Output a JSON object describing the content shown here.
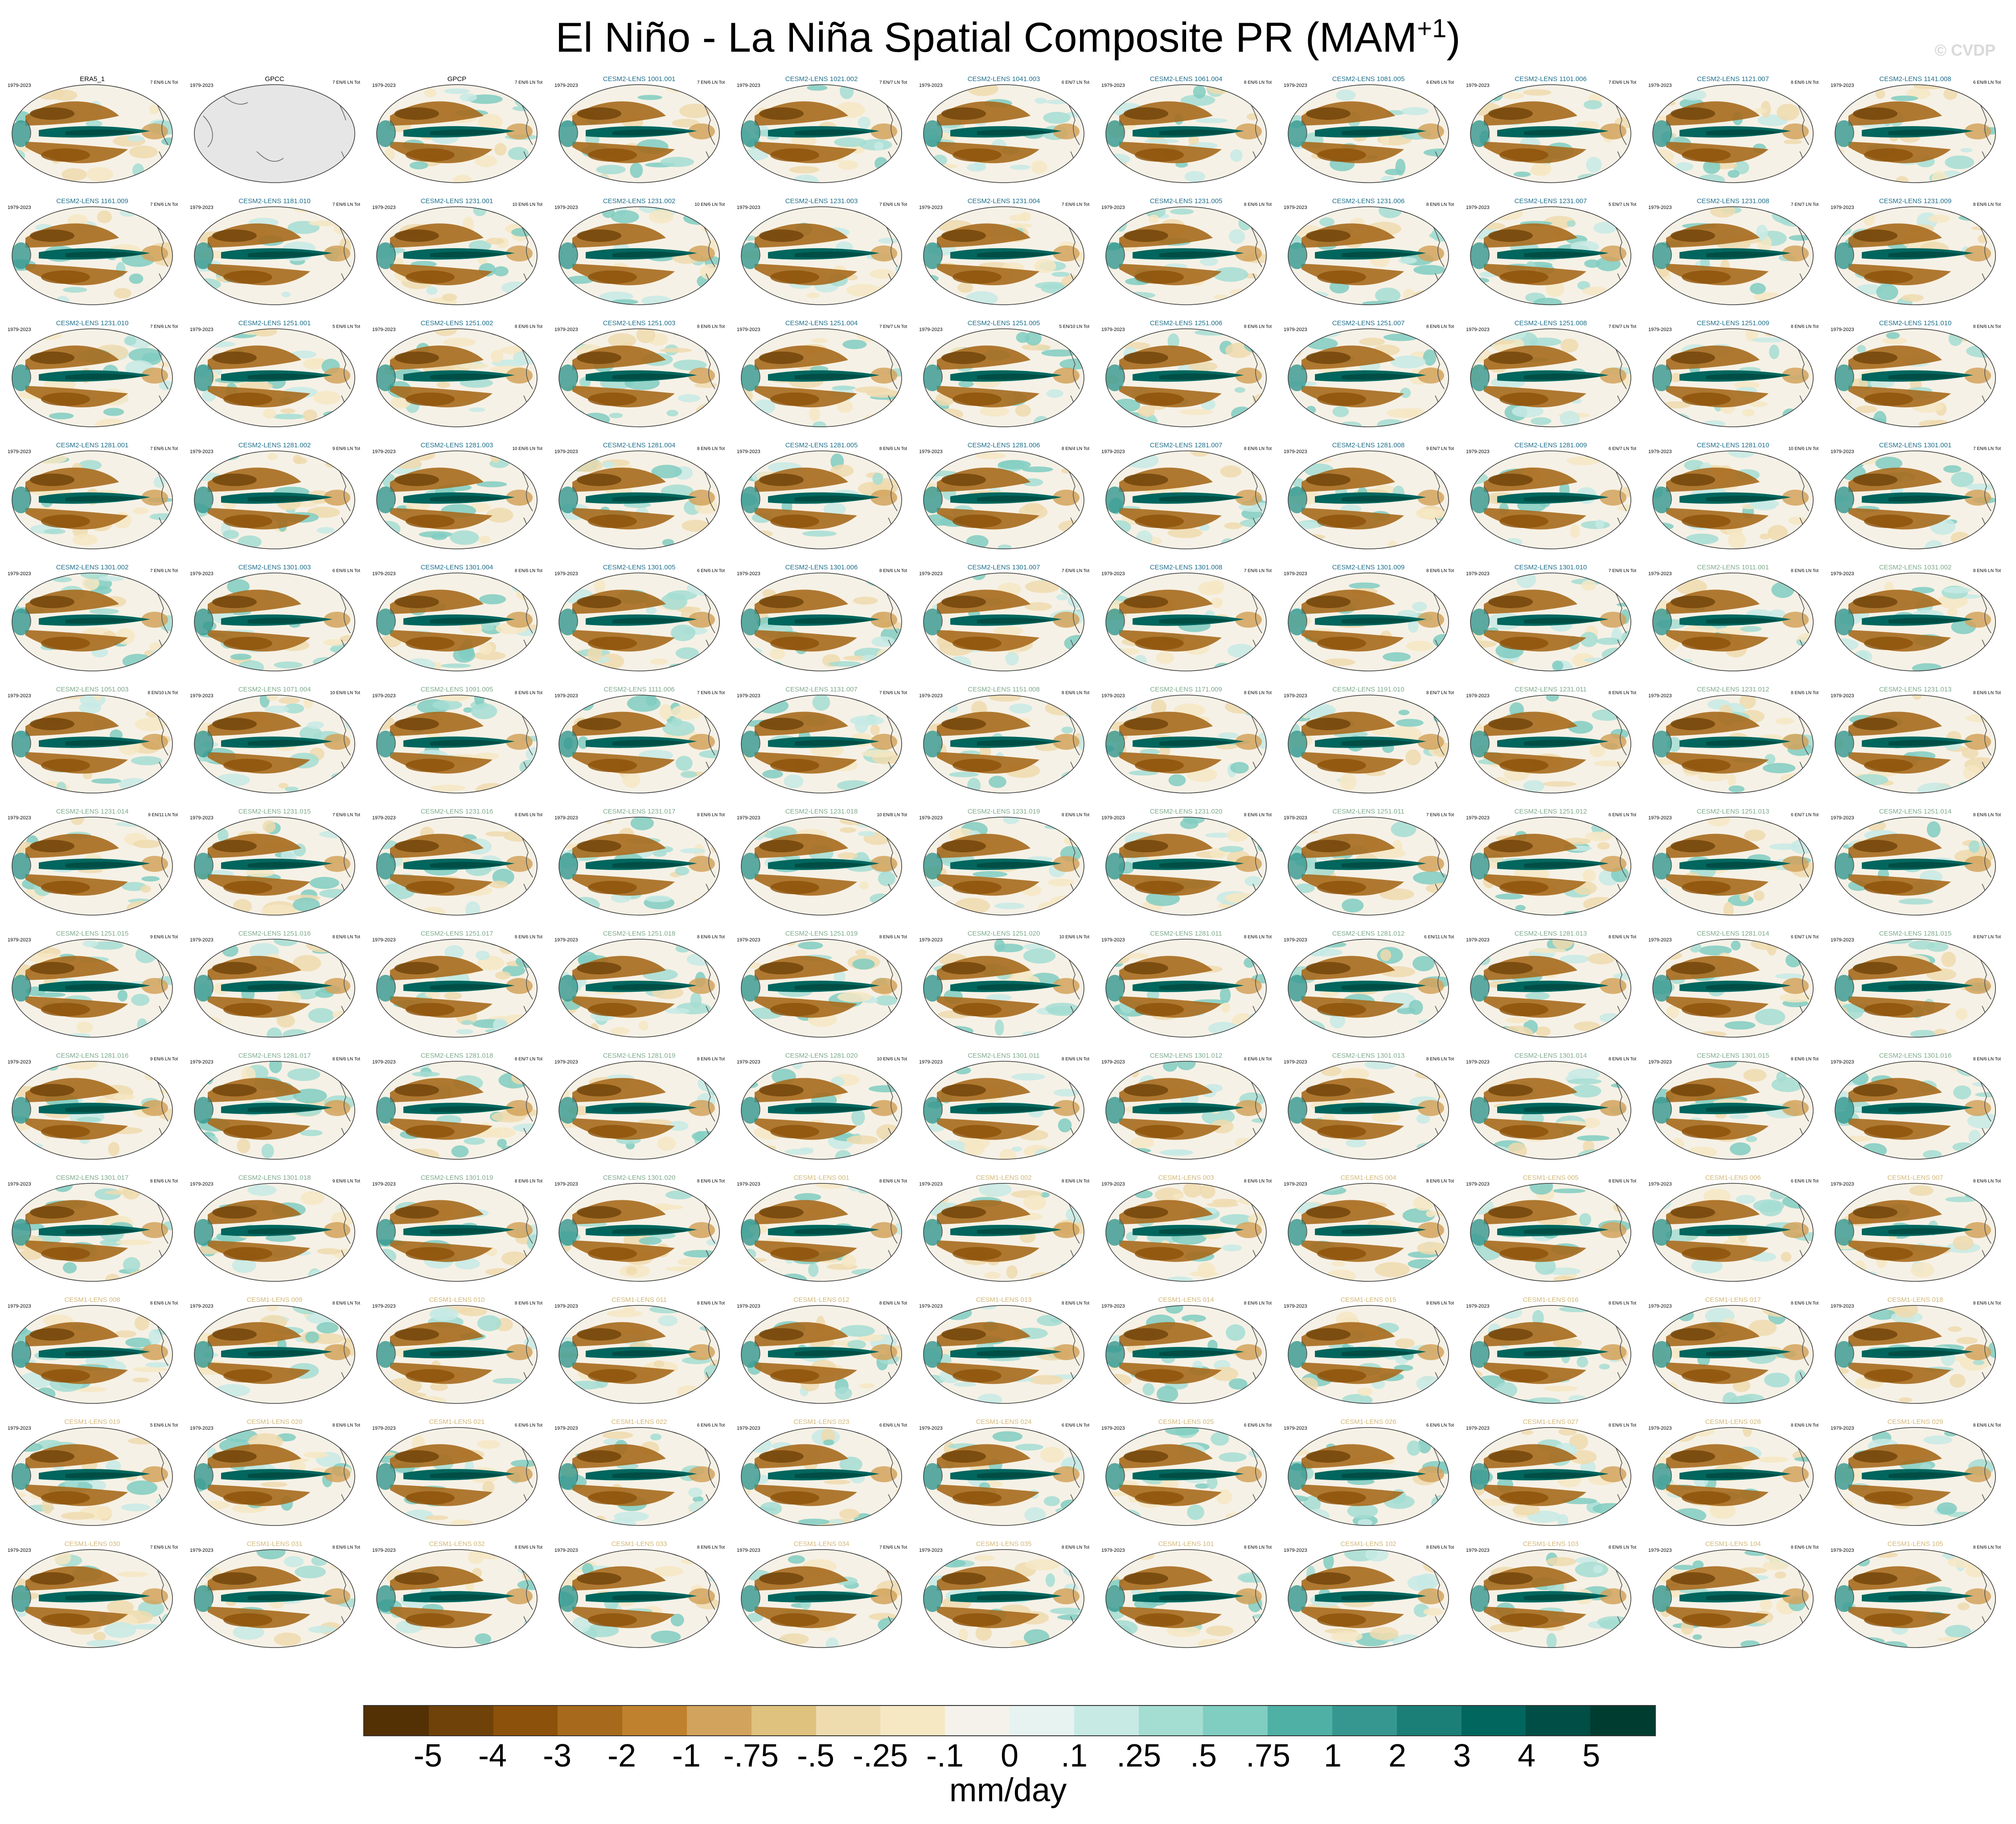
{
  "title": {
    "main": "El Niño - La Niña Spatial Composite PR (MAM",
    "sup": "+1",
    "close": ")"
  },
  "watermark": "© CVDP",
  "period": "1979-2023",
  "units": "mm/day",
  "colorbar": {
    "colors": [
      "#543005",
      "#6f4209",
      "#8c510a",
      "#a76a1d",
      "#bf812d",
      "#d2a35c",
      "#dfc27d",
      "#eedbae",
      "#f6e8c3",
      "#f5f2ec",
      "#e6f3f1",
      "#c7eae5",
      "#a4ddd2",
      "#80cdc1",
      "#4fb0a5",
      "#35978f",
      "#1b7f77",
      "#01665e",
      "#004e45",
      "#003c30"
    ],
    "labels": [
      "-5",
      "-4",
      "-3",
      "-2",
      "-1",
      "-.75",
      "-.5",
      "-.25",
      "-.1",
      "0",
      ".1",
      ".25",
      ".5",
      ".75",
      "1",
      "2",
      "3",
      "4",
      "5"
    ]
  },
  "panels": [
    {
      "name": "ERA5_1",
      "group": "obs",
      "stats": "7 EN/6 LN Tot"
    },
    {
      "name": "GPCC",
      "group": "obs",
      "stats": "7 EN/6 LN Tot",
      "empty": true
    },
    {
      "name": "GPCP",
      "group": "obs",
      "stats": "7 EN/6 LN Tot"
    },
    {
      "name": "CESM2-LENS 1001.001",
      "group": "c2a",
      "stats": "7 EN/6 LN Tot"
    },
    {
      "name": "CESM2-LENS 1021.002",
      "group": "c2a",
      "stats": "7 EN/7 LN Tot"
    },
    {
      "name": "CESM2-LENS 1041.003",
      "group": "c2a",
      "stats": "6 EN/7 LN Tot"
    },
    {
      "name": "CESM2-LENS 1061.004",
      "group": "c2a",
      "stats": "8 EN/6 LN Tot"
    },
    {
      "name": "CESM2-LENS 1081.005",
      "group": "c2a",
      "stats": "6 EN/6 LN Tot"
    },
    {
      "name": "CESM2-LENS 1101.006",
      "group": "c2a",
      "stats": "7 EN/6 LN Tot"
    },
    {
      "name": "CESM2-LENS 1121.007",
      "group": "c2a",
      "stats": "8 EN/6 LN Tot"
    },
    {
      "name": "CESM2-LENS 1141.008",
      "group": "c2a",
      "stats": "6 EN/8 LN Tot"
    },
    {
      "name": "CESM2-LENS 1161.009",
      "group": "c2a",
      "stats": "7 EN/6 LN Tot"
    },
    {
      "name": "CESM2-LENS 1181.010",
      "group": "c2a",
      "stats": "7 EN/6 LN Tot"
    },
    {
      "name": "CESM2-LENS 1231.001",
      "group": "c2a",
      "stats": "10 EN/6 LN Tot"
    },
    {
      "name": "CESM2-LENS 1231.002",
      "group": "c2a",
      "stats": "10 EN/6 LN Tot"
    },
    {
      "name": "CESM2-LENS 1231.003",
      "group": "c2a",
      "stats": "7 EN/6 LN Tot"
    },
    {
      "name": "CESM2-LENS 1231.004",
      "group": "c2a",
      "stats": "7 EN/6 LN Tot"
    },
    {
      "name": "CESM2-LENS 1231.005",
      "group": "c2a",
      "stats": "8 EN/6 LN Tot"
    },
    {
      "name": "CESM2-LENS 1231.006",
      "group": "c2a",
      "stats": "8 EN/6 LN Tot"
    },
    {
      "name": "CESM2-LENS 1231.007",
      "group": "c2a",
      "stats": "5 EN/7 LN Tot"
    },
    {
      "name": "CESM2-LENS 1231.008",
      "group": "c2a",
      "stats": "7 EN/7 LN Tot"
    },
    {
      "name": "CESM2-LENS 1231.009",
      "group": "c2a",
      "stats": "8 EN/6 LN Tot"
    },
    {
      "name": "CESM2-LENS 1231.010",
      "group": "c2a",
      "stats": "7 EN/6 LN Tot"
    },
    {
      "name": "CESM2-LENS 1251.001",
      "group": "c2a",
      "stats": "5 EN/6 LN Tot"
    },
    {
      "name": "CESM2-LENS 1251.002",
      "group": "c2a",
      "stats": "8 EN/6 LN Tot"
    },
    {
      "name": "CESM2-LENS 1251.003",
      "group": "c2a",
      "stats": "8 EN/6 LN Tot"
    },
    {
      "name": "CESM2-LENS 1251.004",
      "group": "c2a",
      "stats": "7 EN/7 LN Tot"
    },
    {
      "name": "CESM2-LENS 1251.005",
      "group": "c2a",
      "stats": "5 EN/10 LN Tot"
    },
    {
      "name": "CESM2-LENS 1251.006",
      "group": "c2a",
      "stats": "8 EN/6 LN Tot"
    },
    {
      "name": "CESM2-LENS 1251.007",
      "group": "c2a",
      "stats": "8 EN/6 LN Tot"
    },
    {
      "name": "CESM2-LENS 1251.008",
      "group": "c2a",
      "stats": "7 EN/7 LN Tot"
    },
    {
      "name": "CESM2-LENS 1251.009",
      "group": "c2a",
      "stats": "8 EN/6 LN Tot"
    },
    {
      "name": "CESM2-LENS 1251.010",
      "group": "c2a",
      "stats": "8 EN/6 LN Tot"
    },
    {
      "name": "CESM2-LENS 1281.001",
      "group": "c2a",
      "stats": "7 EN/6 LN Tot"
    },
    {
      "name": "CESM2-LENS 1281.002",
      "group": "c2a",
      "stats": "9 EN/6 LN Tot"
    },
    {
      "name": "CESM2-LENS 1281.003",
      "group": "c2a",
      "stats": "10 EN/6 LN Tot"
    },
    {
      "name": "CESM2-LENS 1281.004",
      "group": "c2a",
      "stats": "8 EN/6 LN Tot"
    },
    {
      "name": "CESM2-LENS 1281.005",
      "group": "c2a",
      "stats": "8 EN/6 LN Tot"
    },
    {
      "name": "CESM2-LENS 1281.006",
      "group": "c2a",
      "stats": "8 EN/4 LN Tot"
    },
    {
      "name": "CESM2-LENS 1281.007",
      "group": "c2a",
      "stats": "8 EN/6 LN Tot"
    },
    {
      "name": "CESM2-LENS 1281.008",
      "group": "c2a",
      "stats": "9 EN/7 LN Tot"
    },
    {
      "name": "CESM2-LENS 1281.009",
      "group": "c2a",
      "stats": "6 EN/7 LN Tot"
    },
    {
      "name": "CESM2-LENS 1281.010",
      "group": "c2a",
      "stats": "10 EN/6 LN Tot"
    },
    {
      "name": "CESM2-LENS 1301.001",
      "group": "c2a",
      "stats": "7 EN/6 LN Tot"
    },
    {
      "name": "CESM2-LENS 1301.002",
      "group": "c2a",
      "stats": "7 EN/6 LN Tot"
    },
    {
      "name": "CESM2-LENS 1301.003",
      "group": "c2a",
      "stats": "6 EN/6 LN Tot"
    },
    {
      "name": "CESM2-LENS 1301.004",
      "group": "c2a",
      "stats": "8 EN/6 LN Tot"
    },
    {
      "name": "CESM2-LENS 1301.005",
      "group": "c2a",
      "stats": "6 EN/6 LN Tot"
    },
    {
      "name": "CESM2-LENS 1301.006",
      "group": "c2a",
      "stats": "8 EN/6 LN Tot"
    },
    {
      "name": "CESM2-LENS 1301.007",
      "group": "c2a",
      "stats": "7 EN/6 LN Tot"
    },
    {
      "name": "CESM2-LENS 1301.008",
      "group": "c2a",
      "stats": "7 EN/6 LN Tot"
    },
    {
      "name": "CESM2-LENS 1301.009",
      "group": "c2a",
      "stats": "8 EN/6 LN Tot"
    },
    {
      "name": "CESM2-LENS 1301.010",
      "group": "c2a",
      "stats": "7 EN/6 LN Tot"
    },
    {
      "name": "CESM2-LENS 1011.001",
      "group": "c2b",
      "stats": "8 EN/6 LN Tot"
    },
    {
      "name": "CESM2-LENS 1031.002",
      "group": "c2b",
      "stats": "8 EN/6 LN Tot"
    },
    {
      "name": "CESM2-LENS 1051.003",
      "group": "c2b",
      "stats": "8 EN/10 LN Tot"
    },
    {
      "name": "CESM2-LENS 1071.004",
      "group": "c2b",
      "stats": "10 EN/6 LN Tot"
    },
    {
      "name": "CESM2-LENS 1091.005",
      "group": "c2b",
      "stats": "8 EN/6 LN Tot"
    },
    {
      "name": "CESM2-LENS 1111.006",
      "group": "c2b",
      "stats": "7 EN/6 LN Tot"
    },
    {
      "name": "CESM2-LENS 1131.007",
      "group": "c2b",
      "stats": "7 EN/6 LN Tot"
    },
    {
      "name": "CESM2-LENS 1151.008",
      "group": "c2b",
      "stats": "8 EN/6 LN Tot"
    },
    {
      "name": "CESM2-LENS 1171.009",
      "group": "c2b",
      "stats": "8 EN/6 LN Tot"
    },
    {
      "name": "CESM2-LENS 1191.010",
      "group": "c2b",
      "stats": "8 EN/7 LN Tot"
    },
    {
      "name": "CESM2-LENS 1231.011",
      "group": "c2b",
      "stats": "8 EN/6 LN Tot"
    },
    {
      "name": "CESM2-LENS 1231.012",
      "group": "c2b",
      "stats": "8 EN/6 LN Tot"
    },
    {
      "name": "CESM2-LENS 1231.013",
      "group": "c2b",
      "stats": "8 EN/6 LN Tot"
    },
    {
      "name": "CESM2-LENS 1231.014",
      "group": "c2b",
      "stats": "9 EN/11 LN Tot"
    },
    {
      "name": "CESM2-LENS 1231.015",
      "group": "c2b",
      "stats": "7 EN/6 LN Tot"
    },
    {
      "name": "CESM2-LENS 1231.016",
      "group": "c2b",
      "stats": "8 EN/6 LN Tot"
    },
    {
      "name": "CESM2-LENS 1231.017",
      "group": "c2b",
      "stats": "8 EN/6 LN Tot"
    },
    {
      "name": "CESM2-LENS 1231.018",
      "group": "c2b",
      "stats": "10 EN/8 LN Tot"
    },
    {
      "name": "CESM2-LENS 1231.019",
      "group": "c2b",
      "stats": "8 EN/6 LN Tot"
    },
    {
      "name": "CESM2-LENS 1231.020",
      "group": "c2b",
      "stats": "8 EN/6 LN Tot"
    },
    {
      "name": "CESM2-LENS 1251.011",
      "group": "c2b",
      "stats": "7 EN/6 LN Tot"
    },
    {
      "name": "CESM2-LENS 1251.012",
      "group": "c2b",
      "stats": "6 EN/6 LN Tot"
    },
    {
      "name": "CESM2-LENS 1251.013",
      "group": "c2b",
      "stats": "6 EN/7 LN Tot"
    },
    {
      "name": "CESM2-LENS 1251.014",
      "group": "c2b",
      "stats": "8 EN/6 LN Tot"
    },
    {
      "name": "CESM2-LENS 1251.015",
      "group": "c2b",
      "stats": "9 EN/6 LN Tot"
    },
    {
      "name": "CESM2-LENS 1251.016",
      "group": "c2b",
      "stats": "8 EN/6 LN Tot"
    },
    {
      "name": "CESM2-LENS 1251.017",
      "group": "c2b",
      "stats": "8 EN/6 LN Tot"
    },
    {
      "name": "CESM2-LENS 1251.018",
      "group": "c2b",
      "stats": "8 EN/6 LN Tot"
    },
    {
      "name": "CESM2-LENS 1251.019",
      "group": "c2b",
      "stats": "8 EN/6 LN Tot"
    },
    {
      "name": "CESM2-LENS 1251.020",
      "group": "c2b",
      "stats": "10 EN/6 LN Tot"
    },
    {
      "name": "CESM2-LENS 1281.011",
      "group": "c2b",
      "stats": "8 EN/6 LN Tot"
    },
    {
      "name": "CESM2-LENS 1281.012",
      "group": "c2b",
      "stats": "6 EN/11 LN Tot"
    },
    {
      "name": "CESM2-LENS 1281.013",
      "group": "c2b",
      "stats": "8 EN/6 LN Tot"
    },
    {
      "name": "CESM2-LENS 1281.014",
      "group": "c2b",
      "stats": "6 EN/7 LN Tot"
    },
    {
      "name": "CESM2-LENS 1281.015",
      "group": "c2b",
      "stats": "8 EN/7 LN Tot"
    },
    {
      "name": "CESM2-LENS 1281.016",
      "group": "c2b",
      "stats": "9 EN/6 LN Tot"
    },
    {
      "name": "CESM2-LENS 1281.017",
      "group": "c2b",
      "stats": "8 EN/6 LN Tot"
    },
    {
      "name": "CESM2-LENS 1281.018",
      "group": "c2b",
      "stats": "8 EN/7 LN Tot"
    },
    {
      "name": "CESM2-LENS 1281.019",
      "group": "c2b",
      "stats": "8 EN/6 LN Tot"
    },
    {
      "name": "CESM2-LENS 1281.020",
      "group": "c2b",
      "stats": "10 EN/6 LN Tot"
    },
    {
      "name": "CESM2-LENS 1301.011",
      "group": "c2b",
      "stats": "8 EN/6 LN Tot"
    },
    {
      "name": "CESM2-LENS 1301.012",
      "group": "c2b",
      "stats": "8 EN/6 LN Tot"
    },
    {
      "name": "CESM2-LENS 1301.013",
      "group": "c2b",
      "stats": "8 EN/6 LN Tot"
    },
    {
      "name": "CESM2-LENS 1301.014",
      "group": "c2b",
      "stats": "8 EN/6 LN Tot"
    },
    {
      "name": "CESM2-LENS 1301.015",
      "group": "c2b",
      "stats": "8 EN/6 LN Tot"
    },
    {
      "name": "CESM2-LENS 1301.016",
      "group": "c2b",
      "stats": "8 EN/6 LN Tot"
    },
    {
      "name": "CESM2-LENS 1301.017",
      "group": "c2b",
      "stats": "8 EN/6 LN Tot"
    },
    {
      "name": "CESM2-LENS 1301.018",
      "group": "c2b",
      "stats": "9 EN/6 LN Tot"
    },
    {
      "name": "CESM2-LENS 1301.019",
      "group": "c2b",
      "stats": "8 EN/6 LN Tot"
    },
    {
      "name": "CESM2-LENS 1301.020",
      "group": "c2b",
      "stats": "8 EN/6 LN Tot"
    },
    {
      "name": "CESM1-LENS 001",
      "group": "c1",
      "stats": "8 EN/6 LN Tot"
    },
    {
      "name": "CESM1-LENS 002",
      "group": "c1",
      "stats": "8 EN/6 LN Tot"
    },
    {
      "name": "CESM1-LENS 003",
      "group": "c1",
      "stats": "8 EN/6 LN Tot"
    },
    {
      "name": "CESM1-LENS 004",
      "group": "c1",
      "stats": "8 EN/6 LN Tot"
    },
    {
      "name": "CESM1-LENS 005",
      "group": "c1",
      "stats": "8 EN/6 LN Tot"
    },
    {
      "name": "CESM1-LENS 006",
      "group": "c1",
      "stats": "6 EN/6 LN Tot"
    },
    {
      "name": "CESM1-LENS 007",
      "group": "c1",
      "stats": "8 EN/6 LN Tot"
    },
    {
      "name": "CESM1-LENS 008",
      "group": "c1",
      "stats": "8 EN/6 LN Tot"
    },
    {
      "name": "CESM1-LENS 009",
      "group": "c1",
      "stats": "8 EN/6 LN Tot"
    },
    {
      "name": "CESM1-LENS 010",
      "group": "c1",
      "stats": "8 EN/6 LN Tot"
    },
    {
      "name": "CESM1-LENS 011",
      "group": "c1",
      "stats": "8 EN/6 LN Tot"
    },
    {
      "name": "CESM1-LENS 012",
      "group": "c1",
      "stats": "8 EN/6 LN Tot"
    },
    {
      "name": "CESM1-LENS 013",
      "group": "c1",
      "stats": "8 EN/6 LN Tot"
    },
    {
      "name": "CESM1-LENS 014",
      "group": "c1",
      "stats": "8 EN/6 LN Tot"
    },
    {
      "name": "CESM1-LENS 015",
      "group": "c1",
      "stats": "8 EN/6 LN Tot"
    },
    {
      "name": "CESM1-LENS 016",
      "group": "c1",
      "stats": "8 EN/6 LN Tot"
    },
    {
      "name": "CESM1-LENS 017",
      "group": "c1",
      "stats": "8 EN/6 LN Tot"
    },
    {
      "name": "CESM1-LENS 018",
      "group": "c1",
      "stats": "8 EN/6 LN Tot"
    },
    {
      "name": "CESM1-LENS 019",
      "group": "c1",
      "stats": "5 EN/6 LN Tot"
    },
    {
      "name": "CESM1-LENS 020",
      "group": "c1",
      "stats": "8 EN/6 LN Tot"
    },
    {
      "name": "CESM1-LENS 021",
      "group": "c1",
      "stats": "6 EN/6 LN Tot"
    },
    {
      "name": "CESM1-LENS 022",
      "group": "c1",
      "stats": "6 EN/6 LN Tot"
    },
    {
      "name": "CESM1-LENS 023",
      "group": "c1",
      "stats": "6 EN/6 LN Tot"
    },
    {
      "name": "CESM1-LENS 024",
      "group": "c1",
      "stats": "6 EN/6 LN Tot"
    },
    {
      "name": "CESM1-LENS 025",
      "group": "c1",
      "stats": "6 EN/6 LN Tot"
    },
    {
      "name": "CESM1-LENS 026",
      "group": "c1",
      "stats": "6 EN/6 LN Tot"
    },
    {
      "name": "CESM1-LENS 027",
      "group": "c1",
      "stats": "8 EN/6 LN Tot"
    },
    {
      "name": "CESM1-LENS 028",
      "group": "c1",
      "stats": "8 EN/6 LN Tot"
    },
    {
      "name": "CESM1-LENS 029",
      "group": "c1",
      "stats": "8 EN/6 LN Tot"
    },
    {
      "name": "CESM1-LENS 030",
      "group": "c1",
      "stats": "7 EN/6 LN Tot"
    },
    {
      "name": "CESM1-LENS 031",
      "group": "c1",
      "stats": "8 EN/6 LN Tot"
    },
    {
      "name": "CESM1-LENS 032",
      "group": "c1",
      "stats": "8 EN/6 LN Tot"
    },
    {
      "name": "CESM1-LENS 033",
      "group": "c1",
      "stats": "8 EN/6 LN Tot"
    },
    {
      "name": "CESM1-LENS 034",
      "group": "c1",
      "stats": "7 EN/6 LN Tot"
    },
    {
      "name": "CESM1-LENS 035",
      "group": "c1",
      "stats": "8 EN/6 LN Tot"
    },
    {
      "name": "CESM1-LENS 101",
      "group": "c1",
      "stats": "8 EN/6 LN Tot"
    },
    {
      "name": "CESM1-LENS 102",
      "group": "c1",
      "stats": "8 EN/6 LN Tot"
    },
    {
      "name": "CESM1-LENS 103",
      "group": "c1",
      "stats": "8 EN/6 LN Tot"
    },
    {
      "name": "CESM1-LENS 104",
      "group": "c1",
      "stats": "8 EN/6 LN Tot"
    },
    {
      "name": "CESM1-LENS 105",
      "group": "c1",
      "stats": "8 EN/6 LN Tot"
    }
  ]
}
